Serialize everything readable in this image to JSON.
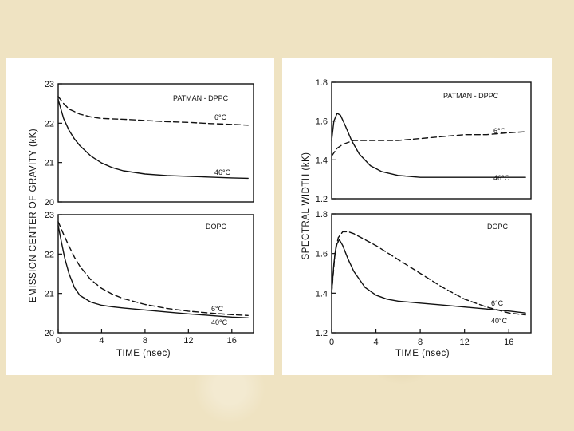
{
  "chart_data": [
    {
      "type": "line",
      "title": "PATMAN - DPPC",
      "ylabel": "EMISSION CENTER OF GRAVITY (kK)",
      "xlabel": "",
      "xlim": [
        0,
        18
      ],
      "ylim": [
        20,
        23
      ],
      "y_ticks": [
        20,
        21,
        22,
        23
      ],
      "y_tick_labels": [
        "20",
        "21",
        "22",
        "23"
      ],
      "series": [
        {
          "name": "6°C",
          "style": "dashed",
          "x": [
            0,
            0.5,
            1,
            2,
            3,
            4,
            6,
            8,
            10,
            12,
            14,
            16,
            17.5
          ],
          "y": [
            22.68,
            22.5,
            22.36,
            22.23,
            22.16,
            22.12,
            22.1,
            22.07,
            22.04,
            22.02,
            21.99,
            21.97,
            21.95
          ]
        },
        {
          "name": "46°C",
          "style": "solid",
          "x": [
            0,
            0.5,
            1,
            1.5,
            2,
            3,
            4,
            5,
            6,
            8,
            10,
            12,
            14,
            16,
            17.5
          ],
          "y": [
            22.6,
            22.12,
            21.82,
            21.6,
            21.43,
            21.17,
            20.99,
            20.87,
            20.79,
            20.71,
            20.67,
            20.65,
            20.63,
            20.61,
            20.6
          ]
        }
      ]
    },
    {
      "type": "line",
      "title": "DOPC",
      "ylabel": "",
      "xlabel": "TIME (nsec)",
      "xlim": [
        0,
        18
      ],
      "ylim": [
        20,
        23
      ],
      "y_ticks": [
        20,
        21,
        22,
        23
      ],
      "y_tick_labels": [
        "20",
        "21",
        "22",
        "23"
      ],
      "x_ticks": [
        0,
        4,
        8,
        12,
        16
      ],
      "x_tick_labels": [
        "0",
        "4",
        "8",
        "12",
        "16"
      ],
      "series": [
        {
          "name": "6°C",
          "style": "dashed",
          "x": [
            0,
            0.5,
            1,
            1.5,
            2,
            3,
            4,
            5,
            6,
            8,
            10,
            12,
            14,
            16,
            17.5
          ],
          "y": [
            22.82,
            22.5,
            22.2,
            21.92,
            21.69,
            21.35,
            21.13,
            20.98,
            20.87,
            20.72,
            20.62,
            20.55,
            20.5,
            20.46,
            20.44
          ]
        },
        {
          "name": "40°C",
          "style": "solid",
          "x": [
            0,
            0.3,
            0.6,
            1,
            1.5,
            2,
            3,
            4,
            5,
            6,
            8,
            10,
            12,
            14,
            16,
            17.5
          ],
          "y": [
            22.72,
            22.3,
            21.9,
            21.5,
            21.15,
            20.95,
            20.78,
            20.7,
            20.66,
            20.63,
            20.58,
            20.53,
            20.48,
            20.44,
            20.4,
            20.38
          ]
        }
      ]
    },
    {
      "type": "line",
      "title": "PATMAN - DPPC",
      "ylabel": "SPECTRAL WIDTH (kK)",
      "xlabel": "",
      "xlim": [
        0,
        18
      ],
      "ylim": [
        1.2,
        1.8
      ],
      "y_ticks": [
        1.2,
        1.4,
        1.6,
        1.8
      ],
      "y_tick_labels": [
        "1.2",
        "1.4",
        "1.6",
        "1.8"
      ],
      "series": [
        {
          "name": "6°C",
          "style": "dashed",
          "x": [
            0,
            0.5,
            1,
            1.5,
            2,
            3,
            4,
            5,
            6,
            8,
            10,
            12,
            14,
            16,
            17.5
          ],
          "y": [
            1.42,
            1.46,
            1.48,
            1.49,
            1.5,
            1.5,
            1.5,
            1.5,
            1.5,
            1.51,
            1.52,
            1.53,
            1.53,
            1.54,
            1.545
          ]
        },
        {
          "name": "46°C",
          "style": "solid",
          "x": [
            0,
            0.2,
            0.5,
            0.8,
            1.2,
            1.8,
            2.5,
            3.5,
            4.5,
            6,
            8,
            10,
            12,
            14,
            16,
            17.5
          ],
          "y": [
            1.5,
            1.6,
            1.64,
            1.63,
            1.58,
            1.5,
            1.43,
            1.37,
            1.34,
            1.32,
            1.31,
            1.31,
            1.31,
            1.31,
            1.31,
            1.31
          ]
        }
      ]
    },
    {
      "type": "line",
      "title": "DOPC",
      "ylabel": "",
      "xlabel": "TIME (nsec)",
      "xlim": [
        0,
        18
      ],
      "ylim": [
        1.2,
        1.8
      ],
      "y_ticks": [
        1.2,
        1.4,
        1.6,
        1.8
      ],
      "y_tick_labels": [
        "1.2",
        "1.4",
        "1.6",
        "1.8"
      ],
      "x_ticks": [
        0,
        4,
        8,
        12,
        16
      ],
      "x_tick_labels": [
        "0",
        "4",
        "8",
        "12",
        "16"
      ],
      "series": [
        {
          "name": "6°C",
          "style": "dashed",
          "x": [
            0,
            0.3,
            0.6,
            1,
            1.5,
            2,
            3,
            4,
            6,
            8,
            10,
            12,
            14,
            16,
            17.5
          ],
          "y": [
            1.4,
            1.6,
            1.68,
            1.71,
            1.71,
            1.7,
            1.67,
            1.64,
            1.57,
            1.5,
            1.43,
            1.37,
            1.33,
            1.3,
            1.29
          ]
        },
        {
          "name": "40°C",
          "style": "solid",
          "x": [
            0,
            0.2,
            0.4,
            0.7,
            1,
            1.5,
            2,
            3,
            4,
            5,
            6,
            8,
            10,
            12,
            14,
            16,
            17.5
          ],
          "y": [
            1.4,
            1.55,
            1.64,
            1.67,
            1.64,
            1.57,
            1.51,
            1.43,
            1.39,
            1.37,
            1.36,
            1.35,
            1.34,
            1.33,
            1.32,
            1.31,
            1.3
          ]
        }
      ]
    }
  ]
}
